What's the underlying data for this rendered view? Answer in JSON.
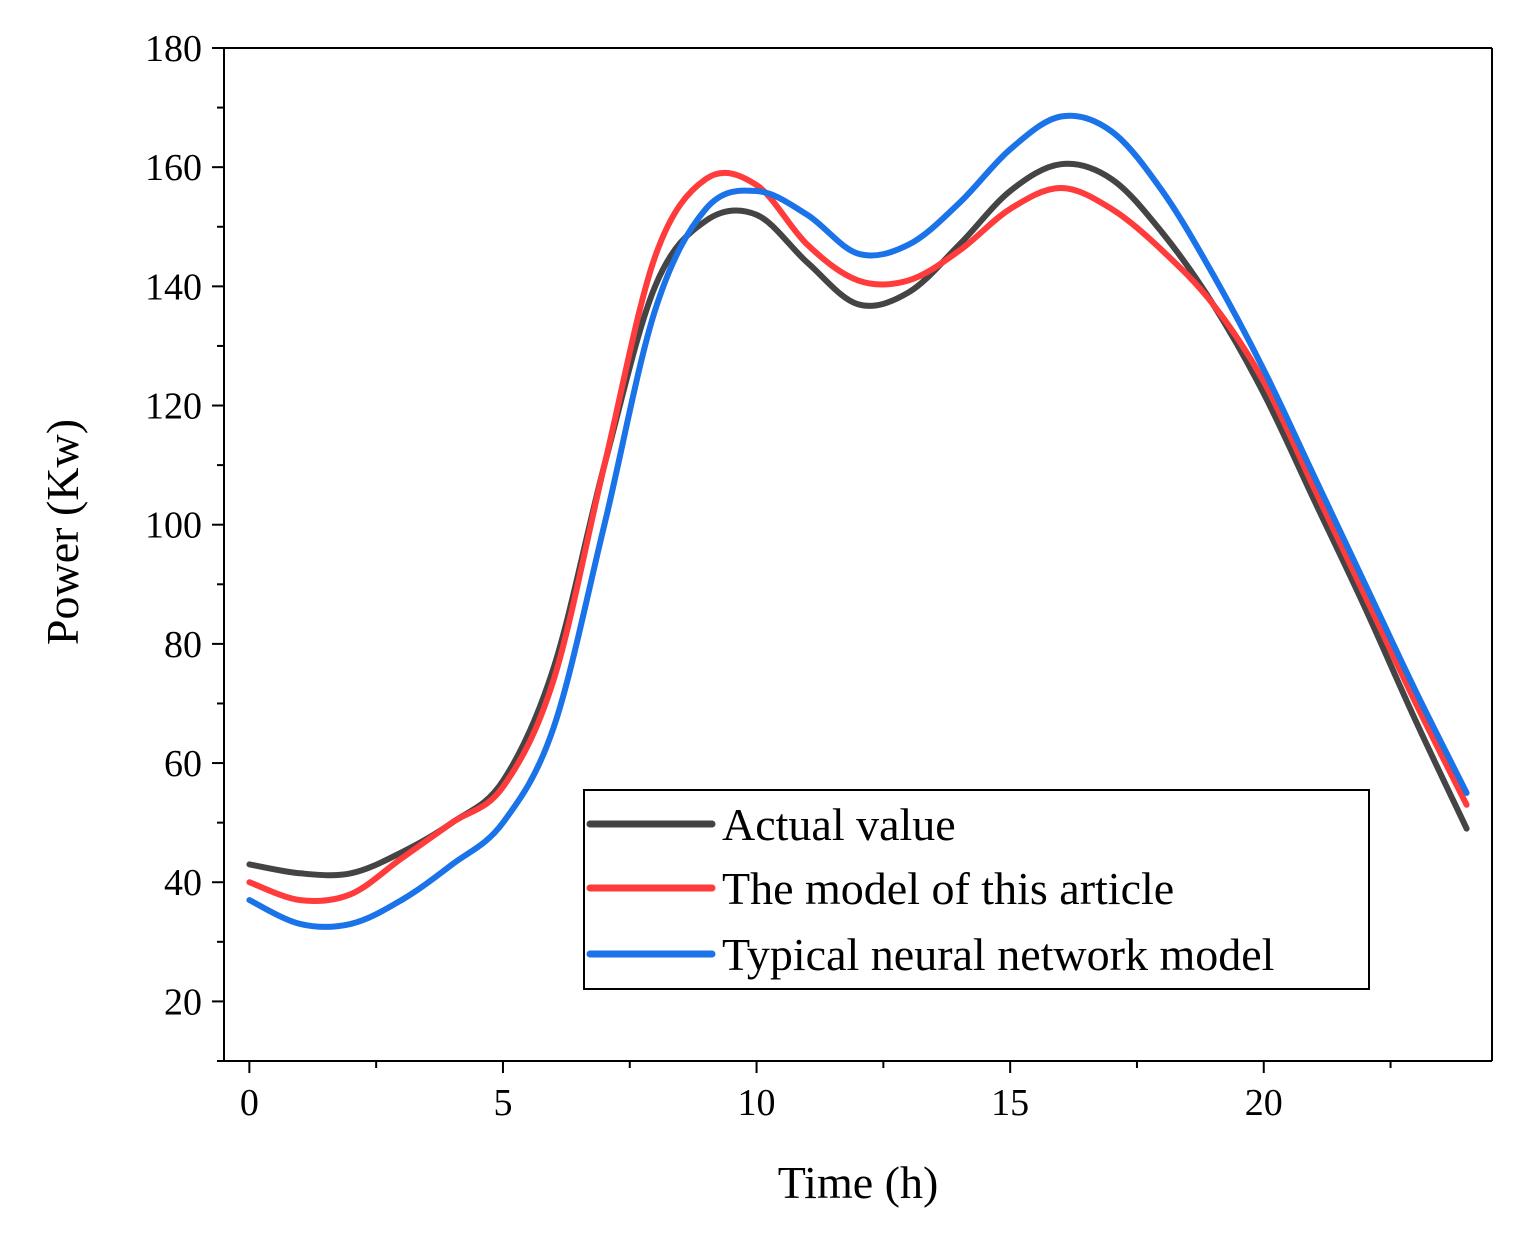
{
  "chart_data": {
    "type": "line",
    "title": "",
    "xlabel": "Time (h)",
    "ylabel": "Power (Kw)",
    "xlim": [
      -0.5,
      24.5
    ],
    "ylim": [
      10,
      180
    ],
    "xticks": [
      0,
      5,
      10,
      15,
      20
    ],
    "xtick_labels": [
      "0",
      "5",
      "10",
      "15",
      "20"
    ],
    "yticks": [
      20,
      40,
      60,
      80,
      100,
      120,
      140,
      160,
      180
    ],
    "ytick_labels": [
      "20",
      "40",
      "60",
      "80",
      "100",
      "120",
      "140",
      "160",
      "180"
    ],
    "grid": false,
    "legend_position": "bottom-right",
    "x": [
      0,
      1,
      2,
      3,
      4,
      5,
      6,
      7,
      8,
      9,
      10,
      11,
      12,
      13,
      14,
      15,
      16,
      17,
      18,
      19,
      20,
      21,
      22,
      23,
      24
    ],
    "series": [
      {
        "name": "Actual value",
        "color": "#444444",
        "values": [
          43,
          41.5,
          41.5,
          45,
          50,
          57,
          76,
          110,
          140,
          151,
          152,
          144,
          137,
          139,
          147,
          156,
          160.5,
          158,
          149,
          137,
          122,
          104,
          86,
          67,
          49
        ]
      },
      {
        "name": "The model of this article",
        "color": "#ff3b3b",
        "values": [
          40,
          37,
          38,
          44,
          50,
          56,
          74,
          110,
          145,
          158,
          157,
          147,
          141,
          141,
          146,
          153,
          156.5,
          153,
          146,
          137,
          124,
          106,
          88,
          70,
          53
        ]
      },
      {
        "name": "Typical neural network model",
        "color": "#1a73e8",
        "values": [
          37,
          33,
          33,
          37,
          43,
          50,
          66,
          100,
          136,
          153,
          156,
          152,
          145.5,
          147,
          154,
          163,
          168.5,
          166,
          156,
          142,
          126,
          108,
          90,
          72,
          55
        ]
      }
    ]
  }
}
